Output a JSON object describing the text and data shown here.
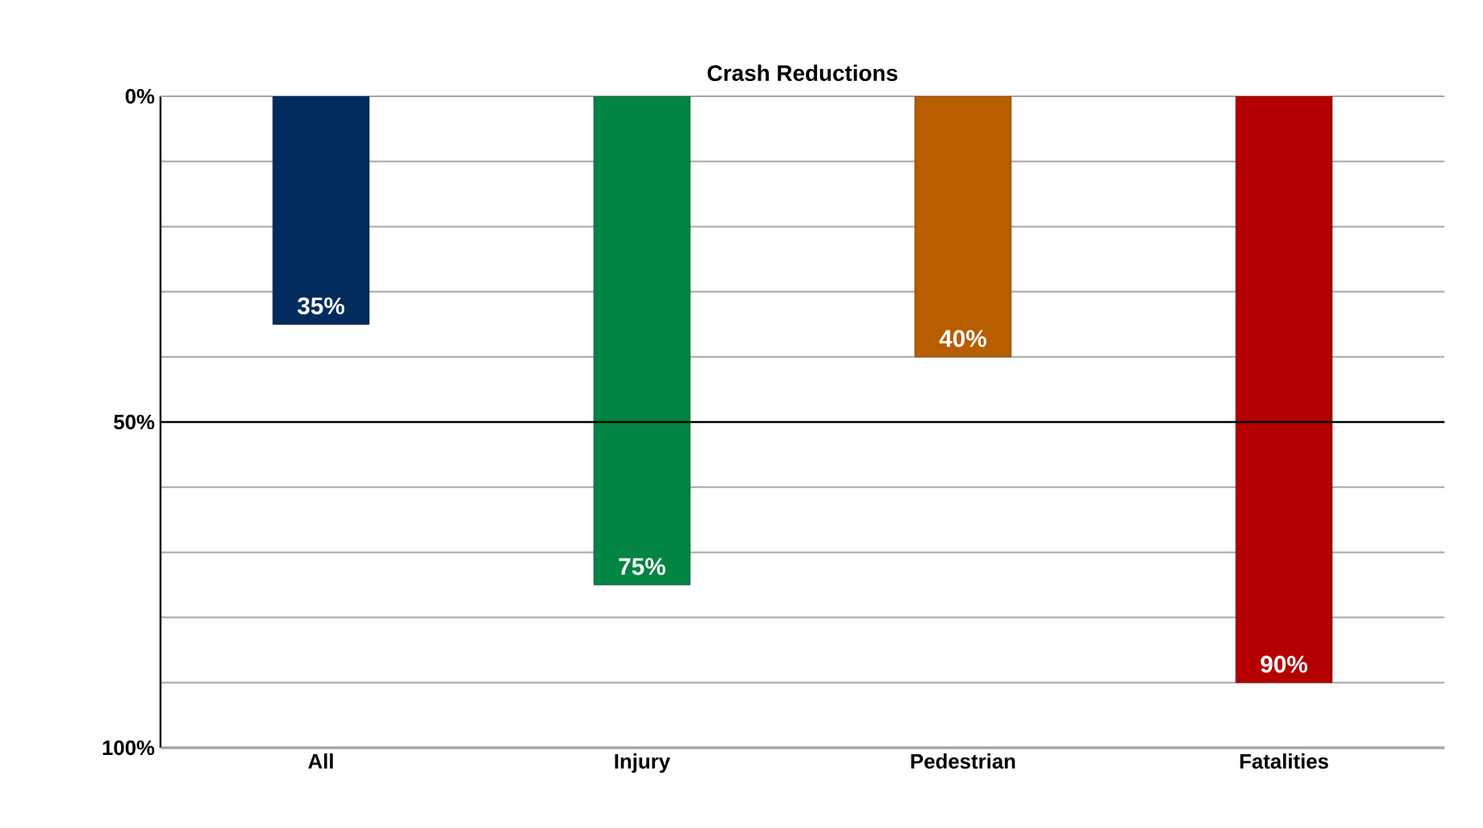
{
  "chart_data": {
    "type": "bar",
    "title": "Crash Reductions",
    "categories": [
      "All",
      "Injury",
      "Pedestrian",
      "Fatalities"
    ],
    "values": [
      35,
      75,
      40,
      90
    ],
    "colors": [
      "#022c5e",
      "#028443",
      "#b85d00",
      "#b40000"
    ],
    "value_labels": [
      "35%",
      "75%",
      "40%",
      "90%"
    ],
    "ylim": [
      100,
      0
    ],
    "yticks": [
      {
        "value": 0,
        "label": "0%"
      },
      {
        "value": 10,
        "label": null
      },
      {
        "value": 20,
        "label": null
      },
      {
        "value": 30,
        "label": null
      },
      {
        "value": 40,
        "label": null
      },
      {
        "value": 50,
        "label": "50%"
      },
      {
        "value": 60,
        "label": null
      },
      {
        "value": 70,
        "label": null
      },
      {
        "value": 80,
        "label": null
      },
      {
        "value": 90,
        "label": null
      },
      {
        "value": 100,
        "label": "100%"
      }
    ],
    "ref_lines": [
      {
        "axis": "y",
        "value": 50,
        "color": "#000000"
      }
    ],
    "grid": "y"
  }
}
